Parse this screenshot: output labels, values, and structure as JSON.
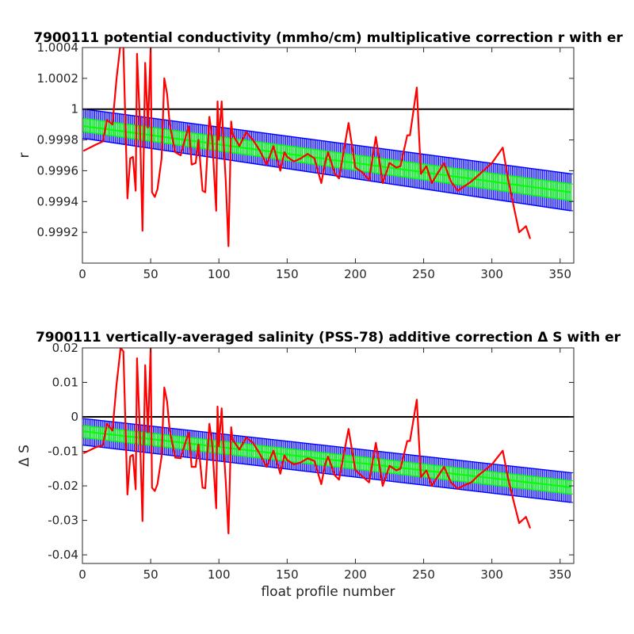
{
  "figure": {
    "background": "#ffffff",
    "colors": {
      "axis": "#262626",
      "reference_line": "#000000",
      "correction_line": "#ff0000",
      "fit_error_band": "#0000ff",
      "fit_line": "#00ff00"
    }
  },
  "chart_data": [
    {
      "type": "line",
      "title": "7900111 potential conductivity (mmho/cm) multiplicative correction r with er",
      "xlabel": "",
      "ylabel": "r",
      "xlim": [
        0,
        360
      ],
      "ylim": [
        0.999,
        1.0004
      ],
      "xticks": [
        0,
        50,
        100,
        150,
        200,
        250,
        300,
        350
      ],
      "xtick_labels": [
        "0",
        "50",
        "100",
        "150",
        "200",
        "250",
        "300",
        "350"
      ],
      "yticks": [
        0.9992,
        0.9994,
        0.9996,
        0.9998,
        1.0,
        1.0002,
        1.0004
      ],
      "ytick_labels": [
        "0.9992",
        "0.9994",
        "0.9996",
        "0.9998",
        "1",
        "1.0002",
        "1.0004"
      ],
      "reference_line": {
        "y": 1.0
      },
      "fit": {
        "x": [
          1,
          358
        ],
        "upper": [
          1.0,
          0.99958
        ],
        "center": [
          0.99989,
          0.99946
        ],
        "lower": [
          0.99981,
          0.99934
        ]
      },
      "series": [
        {
          "x": [
            1,
            10,
            15,
            18,
            22,
            25,
            28,
            30,
            33,
            35,
            37,
            39,
            40,
            42,
            44,
            46,
            48,
            50,
            51,
            53,
            55,
            58,
            60,
            62,
            64,
            68,
            72,
            75,
            78,
            80,
            83,
            85,
            88,
            90,
            93,
            95,
            98,
            99,
            100,
            102,
            103,
            105,
            107,
            109,
            110,
            115,
            120,
            125,
            130,
            135,
            140,
            145,
            148,
            150,
            155,
            160,
            165,
            170,
            175,
            178,
            180,
            185,
            188,
            190,
            195,
            200,
            205,
            210,
            215,
            220,
            225,
            230,
            233,
            238,
            240,
            245,
            248,
            252,
            256,
            260,
            265,
            270,
            275,
            280,
            285,
            290,
            300,
            308,
            312,
            316,
            320,
            325,
            328
          ],
          "y": [
            0.99973,
            0.99977,
            0.99979,
            0.99993,
            0.9999,
            1.0002,
            1.00043,
            1.0004,
            0.99942,
            0.99968,
            0.99969,
            0.99947,
            1.00036,
            0.99995,
            0.99921,
            1.0003,
            0.99988,
            1.0004,
            0.99946,
            0.99943,
            0.99948,
            0.99968,
            1.0002,
            1.0001,
            0.9999,
            0.99972,
            0.9997,
            0.9998,
            0.99989,
            0.99964,
            0.99965,
            0.9998,
            0.99947,
            0.99946,
            0.99995,
            0.99982,
            0.99934,
            1.00005,
            0.9998,
            1.00005,
            0.99985,
            0.99954,
            0.99911,
            0.99992,
            0.99984,
            0.99976,
            0.99985,
            0.9998,
            0.99973,
            0.99964,
            0.99976,
            0.9996,
            0.99972,
            0.99969,
            0.99966,
            0.99968,
            0.99971,
            0.99968,
            0.99952,
            0.99966,
            0.99972,
            0.99958,
            0.99955,
            0.99965,
            0.99991,
            0.99962,
            0.99959,
            0.99954,
            0.99982,
            0.99952,
            0.99965,
            0.99962,
            0.99963,
            0.99983,
            0.99983,
            1.00014,
            0.99958,
            0.99963,
            0.99952,
            0.99958,
            0.99965,
            0.99953,
            0.99947,
            0.9995,
            0.99953,
            0.99957,
            0.99965,
            0.99975,
            0.99954,
            0.99937,
            0.9992,
            0.99924,
            0.99916
          ]
        }
      ]
    },
    {
      "type": "line",
      "title": "7900111 vertically-averaged salinity (PSS-78) additive correction Δ S with er",
      "xlabel": "float profile number",
      "ylabel": "Δ S",
      "xlim": [
        0,
        360
      ],
      "ylim": [
        -0.0425,
        0.02
      ],
      "xticks": [
        0,
        50,
        100,
        150,
        200,
        250,
        300,
        350
      ],
      "xtick_labels": [
        "0",
        "50",
        "100",
        "150",
        "200",
        "250",
        "300",
        "350"
      ],
      "yticks": [
        -0.04,
        -0.03,
        -0.02,
        -0.01,
        0,
        0.01,
        0.02
      ],
      "ytick_labels": [
        "-0.04",
        "-0.03",
        "-0.02",
        "-0.01",
        "0",
        "0.01",
        "0.02"
      ],
      "reference_line": {
        "y": 0
      },
      "fit": {
        "x": [
          1,
          358
        ],
        "upper": [
          -0.0005,
          -0.0162
        ],
        "center": [
          -0.0042,
          -0.0204
        ],
        "lower": [
          -0.0082,
          -0.0248
        ]
      },
      "series": [
        {
          "x": [
            1,
            10,
            15,
            18,
            22,
            25,
            28,
            30,
            33,
            35,
            37,
            39,
            40,
            42,
            44,
            46,
            48,
            50,
            51,
            53,
            55,
            58,
            60,
            62,
            64,
            68,
            72,
            75,
            78,
            80,
            83,
            85,
            88,
            90,
            93,
            95,
            98,
            99,
            100,
            102,
            103,
            105,
            107,
            109,
            110,
            115,
            120,
            125,
            130,
            135,
            140,
            145,
            148,
            150,
            155,
            160,
            165,
            170,
            175,
            178,
            180,
            185,
            188,
            190,
            195,
            200,
            205,
            210,
            215,
            220,
            225,
            230,
            233,
            238,
            240,
            245,
            248,
            252,
            256,
            260,
            265,
            270,
            275,
            280,
            285,
            290,
            300,
            308,
            312,
            316,
            320,
            325,
            328
          ],
          "y": [
            -0.0105,
            -0.0088,
            -0.0082,
            -0.002,
            -0.004,
            0.0095,
            0.02,
            0.019,
            -0.0225,
            -0.0115,
            -0.011,
            -0.021,
            0.017,
            -0.003,
            -0.0302,
            0.015,
            -0.0045,
            0.02,
            -0.0205,
            -0.0215,
            -0.0195,
            -0.0115,
            0.0085,
            0.0045,
            -0.004,
            -0.0118,
            -0.012,
            -0.008,
            -0.0045,
            -0.0145,
            -0.0145,
            -0.008,
            -0.0205,
            -0.0207,
            -0.002,
            -0.0075,
            -0.0265,
            0.003,
            -0.0085,
            0.0025,
            -0.006,
            -0.0185,
            -0.0338,
            -0.003,
            -0.0065,
            -0.0095,
            -0.006,
            -0.0075,
            -0.0108,
            -0.0145,
            -0.0098,
            -0.0165,
            -0.0112,
            -0.0125,
            -0.0138,
            -0.0132,
            -0.012,
            -0.0128,
            -0.0195,
            -0.0135,
            -0.0115,
            -0.017,
            -0.0182,
            -0.014,
            -0.0035,
            -0.0155,
            -0.0172,
            -0.019,
            -0.0075,
            -0.02,
            -0.0142,
            -0.0155,
            -0.015,
            -0.007,
            -0.007,
            0.005,
            -0.0175,
            -0.0155,
            -0.02,
            -0.0175,
            -0.0145,
            -0.019,
            -0.0208,
            -0.0198,
            -0.019,
            -0.017,
            -0.0138,
            -0.0098,
            -0.018,
            -0.0245,
            -0.0308,
            -0.029,
            -0.0322
          ]
        }
      ]
    }
  ]
}
